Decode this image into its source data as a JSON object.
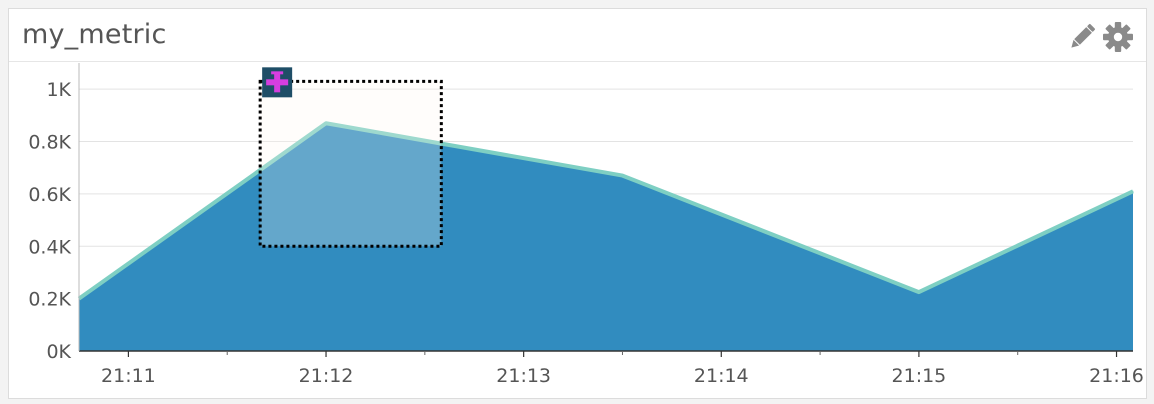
{
  "widget": {
    "title": "my_metric",
    "edit_icon": "pencil-icon",
    "settings_icon": "gear-icon"
  },
  "chart_data": {
    "type": "area",
    "title": "my_metric",
    "x_tick_labels": [
      "21:11",
      "21:12",
      "21:13",
      "21:14",
      "21:15",
      "21:16"
    ],
    "y_tick_labels": [
      "0K",
      "0.2K",
      "0.4K",
      "0.6K",
      "0.8K",
      "1K"
    ],
    "y_ticks": [
      0,
      200,
      400,
      600,
      800,
      1000
    ],
    "ylim": [
      0,
      1100
    ],
    "x_axis_minutes_range": [
      "21:10:45",
      "21:16:05"
    ],
    "series": [
      {
        "x": [
          "21:10:45",
          "21:12:00",
          "21:13:30",
          "21:15:00",
          "21:16:05"
        ],
        "values": [
          200,
          870,
          670,
          225,
          610
        ]
      }
    ],
    "grid": true,
    "colors": {
      "fill": "#318cbf",
      "line": "#7ecfc3",
      "selection_fill": "#fef6ee",
      "marker": "#1f4e67",
      "marker_cross": "#d63ee0"
    },
    "selection": {
      "x_from": "21:11:40",
      "x_to": "21:12:35",
      "y_from": 400,
      "y_to": 1030
    },
    "selection_icon": "add-annotation-icon"
  }
}
